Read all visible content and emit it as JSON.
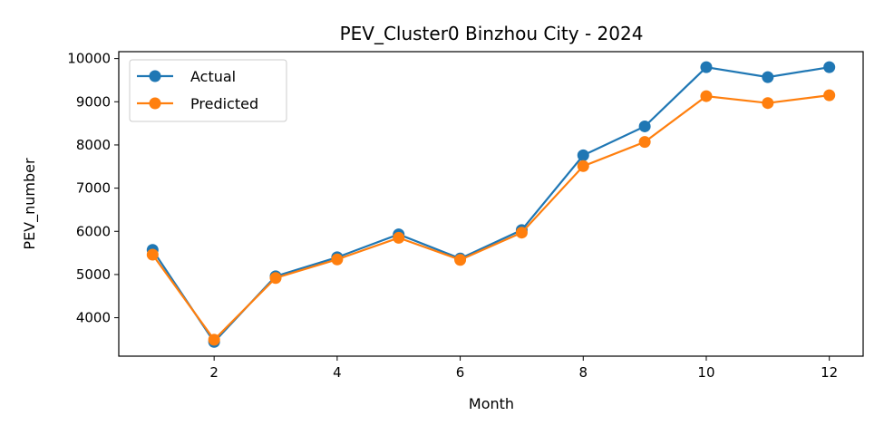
{
  "chart_data": {
    "type": "line",
    "title": "PEV_Cluster0 Binzhou City - 2024",
    "xlabel": "Month",
    "ylabel": "PEV_number",
    "xlim": [
      0.45,
      12.55
    ],
    "ylim": [
      3110,
      10160
    ],
    "xticks": [
      2,
      4,
      6,
      8,
      10,
      12
    ],
    "yticks": [
      4000,
      5000,
      6000,
      7000,
      8000,
      9000,
      10000
    ],
    "grid": false,
    "legend_position": "top-left",
    "x": [
      1,
      2,
      3,
      4,
      5,
      6,
      7,
      8,
      9,
      10,
      11,
      12
    ],
    "series": [
      {
        "name": "Actual",
        "color": "#1f77b4",
        "marker": "circle",
        "values": [
          5570,
          3440,
          4960,
          5400,
          5930,
          5370,
          6030,
          7760,
          8430,
          9800,
          9570,
          9800
        ]
      },
      {
        "name": "Predicted",
        "color": "#ff7f0e",
        "marker": "circle",
        "values": [
          5460,
          3490,
          4920,
          5350,
          5850,
          5340,
          5970,
          7510,
          8070,
          9130,
          8970,
          9150
        ]
      }
    ]
  }
}
